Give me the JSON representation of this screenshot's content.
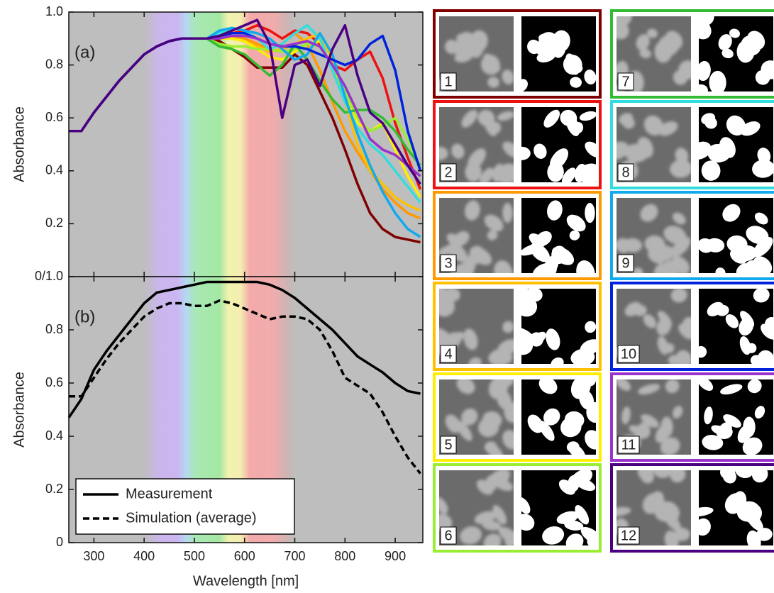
{
  "chart_data": [
    {
      "type": "line",
      "annotation": "(a)",
      "y_label": "Absorbance",
      "x": [
        250,
        275,
        300,
        325,
        350,
        375,
        400,
        425,
        450,
        475,
        500,
        525,
        550,
        575,
        600,
        625,
        650,
        675,
        700,
        725,
        750,
        775,
        800,
        825,
        850,
        875,
        900,
        925,
        950
      ],
      "xlim": [
        250,
        955
      ],
      "ylim": [
        0,
        1.0
      ],
      "yticks": [
        0.2,
        0.4,
        0.6,
        0.8,
        {
          "value": 1.0,
          "label": "1.0"
        }
      ],
      "series": [
        {
          "color": "#800000",
          "values": [
            0.55,
            0.55,
            0.62,
            0.68,
            0.74,
            0.79,
            0.84,
            0.87,
            0.89,
            0.9,
            0.9,
            0.9,
            0.89,
            0.86,
            0.83,
            0.79,
            0.79,
            0.79,
            0.84,
            0.8,
            0.7,
            0.6,
            0.48,
            0.35,
            0.24,
            0.18,
            0.15,
            0.14,
            0.13
          ]
        },
        {
          "color": "#ee1111",
          "values": [
            0.55,
            0.55,
            0.62,
            0.68,
            0.74,
            0.79,
            0.84,
            0.87,
            0.89,
            0.9,
            0.9,
            0.9,
            0.91,
            0.92,
            0.93,
            0.95,
            0.93,
            0.9,
            0.93,
            0.92,
            0.88,
            0.8,
            0.78,
            0.82,
            0.85,
            0.75,
            0.58,
            0.45,
            0.33
          ]
        },
        {
          "color": "#ff9900",
          "values": [
            0.55,
            0.55,
            0.62,
            0.68,
            0.74,
            0.79,
            0.84,
            0.87,
            0.89,
            0.9,
            0.9,
            0.9,
            0.9,
            0.91,
            0.9,
            0.88,
            0.86,
            0.88,
            0.92,
            0.88,
            0.78,
            0.66,
            0.55,
            0.47,
            0.4,
            0.33,
            0.28,
            0.24,
            0.22
          ]
        },
        {
          "color": "#ffc000",
          "values": [
            0.55,
            0.55,
            0.62,
            0.68,
            0.74,
            0.79,
            0.84,
            0.87,
            0.89,
            0.9,
            0.9,
            0.9,
            0.9,
            0.9,
            0.89,
            0.87,
            0.85,
            0.86,
            0.88,
            0.9,
            0.92,
            0.82,
            0.66,
            0.5,
            0.4,
            0.35,
            0.3,
            0.27,
            0.25
          ]
        },
        {
          "color": "#ffee00",
          "values": [
            0.55,
            0.55,
            0.62,
            0.68,
            0.74,
            0.79,
            0.84,
            0.87,
            0.89,
            0.9,
            0.9,
            0.9,
            0.9,
            0.9,
            0.89,
            0.86,
            0.83,
            0.82,
            0.85,
            0.88,
            0.89,
            0.8,
            0.7,
            0.58,
            0.55,
            0.58,
            0.48,
            0.38,
            0.3
          ]
        },
        {
          "color": "#99ee33",
          "values": [
            0.55,
            0.55,
            0.62,
            0.68,
            0.74,
            0.79,
            0.84,
            0.87,
            0.89,
            0.9,
            0.9,
            0.9,
            0.88,
            0.87,
            0.87,
            0.86,
            0.86,
            0.85,
            0.86,
            0.88,
            0.87,
            0.8,
            0.7,
            0.6,
            0.55,
            0.57,
            0.6,
            0.52,
            0.4
          ]
        },
        {
          "color": "#33bb33",
          "values": [
            0.55,
            0.55,
            0.62,
            0.68,
            0.74,
            0.79,
            0.84,
            0.87,
            0.89,
            0.9,
            0.9,
            0.9,
            0.87,
            0.86,
            0.84,
            0.8,
            0.76,
            0.8,
            0.88,
            0.82,
            0.74,
            0.67,
            0.62,
            0.63,
            0.63,
            0.6,
            0.55,
            0.48,
            0.42
          ]
        },
        {
          "color": "#33dddd",
          "values": [
            0.55,
            0.55,
            0.62,
            0.68,
            0.74,
            0.79,
            0.84,
            0.87,
            0.89,
            0.9,
            0.9,
            0.9,
            0.92,
            0.94,
            0.93,
            0.9,
            0.86,
            0.88,
            0.92,
            0.95,
            0.9,
            0.78,
            0.66,
            0.56,
            0.5,
            0.46,
            0.4,
            0.34,
            0.28
          ]
        },
        {
          "color": "#11aaee",
          "values": [
            0.55,
            0.55,
            0.62,
            0.68,
            0.74,
            0.79,
            0.84,
            0.87,
            0.89,
            0.9,
            0.9,
            0.9,
            0.93,
            0.94,
            0.93,
            0.92,
            0.9,
            0.86,
            0.82,
            0.84,
            0.92,
            0.84,
            0.68,
            0.54,
            0.42,
            0.32,
            0.24,
            0.18,
            0.15
          ]
        },
        {
          "color": "#0022dd",
          "values": [
            0.55,
            0.55,
            0.62,
            0.68,
            0.74,
            0.79,
            0.84,
            0.87,
            0.89,
            0.9,
            0.9,
            0.9,
            0.91,
            0.92,
            0.92,
            0.9,
            0.88,
            0.87,
            0.87,
            0.86,
            0.84,
            0.82,
            0.8,
            0.82,
            0.88,
            0.91,
            0.78,
            0.55,
            0.4
          ]
        },
        {
          "color": "#9933cc",
          "values": [
            0.55,
            0.55,
            0.62,
            0.68,
            0.74,
            0.79,
            0.84,
            0.87,
            0.89,
            0.9,
            0.9,
            0.9,
            0.9,
            0.91,
            0.91,
            0.9,
            0.88,
            0.87,
            0.88,
            0.89,
            0.87,
            0.8,
            0.72,
            0.62,
            0.52,
            0.48,
            0.46,
            0.42,
            0.38
          ]
        },
        {
          "color": "#4b0082",
          "values": [
            0.55,
            0.55,
            0.62,
            0.68,
            0.74,
            0.79,
            0.84,
            0.87,
            0.89,
            0.9,
            0.9,
            0.9,
            0.91,
            0.93,
            0.95,
            0.97,
            0.88,
            0.6,
            0.8,
            0.82,
            0.72,
            0.86,
            0.95,
            0.76,
            0.62,
            0.58,
            0.5,
            0.42,
            0.35
          ]
        }
      ]
    },
    {
      "type": "line",
      "annotation": "(b)",
      "y_label": "Absorbance",
      "x_label": "Wavelength [nm]",
      "x": [
        250,
        275,
        300,
        325,
        350,
        375,
        400,
        425,
        450,
        475,
        500,
        525,
        550,
        575,
        600,
        625,
        650,
        675,
        700,
        725,
        750,
        775,
        800,
        825,
        850,
        875,
        900,
        925,
        950
      ],
      "xlim": [
        250,
        955
      ],
      "ylim": [
        0,
        1.0
      ],
      "xticks": [
        300,
        400,
        500,
        600,
        700,
        800,
        900
      ],
      "yticks": [
        0,
        0.2,
        0.4,
        0.6,
        0.8,
        {
          "value": 1.0,
          "label": "0/1.0"
        }
      ],
      "legend": "lower left",
      "series": [
        {
          "name": "Measurement",
          "color": "#000000",
          "dashed": false,
          "values": [
            0.47,
            0.54,
            0.65,
            0.72,
            0.78,
            0.84,
            0.9,
            0.94,
            0.95,
            0.96,
            0.97,
            0.98,
            0.98,
            0.98,
            0.98,
            0.98,
            0.97,
            0.95,
            0.92,
            0.88,
            0.84,
            0.8,
            0.75,
            0.7,
            0.67,
            0.64,
            0.6,
            0.57,
            0.56
          ]
        },
        {
          "name": "Simulation (average)",
          "color": "#000000",
          "dashed": true,
          "values": [
            0.55,
            0.55,
            0.62,
            0.69,
            0.75,
            0.8,
            0.85,
            0.88,
            0.9,
            0.9,
            0.89,
            0.89,
            0.91,
            0.9,
            0.88,
            0.86,
            0.84,
            0.85,
            0.85,
            0.84,
            0.8,
            0.72,
            0.62,
            0.59,
            0.56,
            0.49,
            0.4,
            0.32,
            0.26
          ]
        }
      ]
    }
  ],
  "panels": [
    {
      "label": "1",
      "color": "#800000"
    },
    {
      "label": "2",
      "color": "#ee1111"
    },
    {
      "label": "3",
      "color": "#ff9900"
    },
    {
      "label": "4",
      "color": "#ffc000"
    },
    {
      "label": "5",
      "color": "#ffee00"
    },
    {
      "label": "6",
      "color": "#99ee33"
    },
    {
      "label": "7",
      "color": "#33bb33"
    },
    {
      "label": "8",
      "color": "#33dddd"
    },
    {
      "label": "9",
      "color": "#11aaee"
    },
    {
      "label": "10",
      "color": "#0022dd"
    },
    {
      "label": "11",
      "color": "#9933cc"
    },
    {
      "label": "12",
      "color": "#4b0082"
    }
  ]
}
